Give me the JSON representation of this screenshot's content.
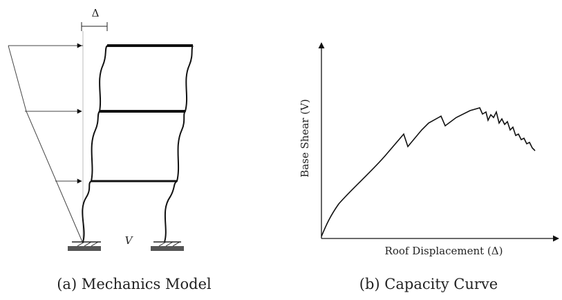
{
  "panel_a": {
    "delta_label": "Δ",
    "base_shear_label": "V",
    "caption": "(a) Mechanics Model"
  },
  "panel_b": {
    "ylabel": "Base Shear (V)",
    "xlabel": "Roof Displacement (Δ)",
    "caption": "(b) Capacity Curve"
  }
}
